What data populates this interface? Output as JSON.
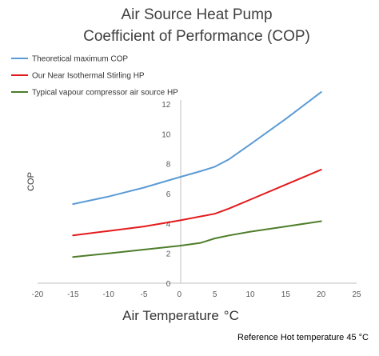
{
  "chart_data": {
    "type": "line",
    "title_line1": "Air Source Heat Pump",
    "title_line2": "Coefficient of Performance (COP)",
    "xlabel": "Air Temperature",
    "xlabel_unit": "°C",
    "ylabel": "COP",
    "note": "Reference Hot temperature 45 °C",
    "xlim": [
      -20,
      25
    ],
    "ylim": [
      0,
      12
    ],
    "xticks": [
      -20,
      -15,
      -10,
      -5,
      0,
      5,
      10,
      15,
      20,
      25
    ],
    "yticks": [
      0,
      2,
      4,
      6,
      8,
      10,
      12
    ],
    "grid": false,
    "legend_position": "top-left",
    "series": [
      {
        "name": "Theoretical maximum COP",
        "color": "#5b9bd5",
        "x": [
          -15,
          -10,
          -5,
          0,
          3,
          5,
          7,
          10,
          15,
          20
        ],
        "y": [
          5.3,
          5.8,
          6.4,
          7.1,
          7.5,
          7.8,
          8.3,
          9.3,
          11.0,
          12.8
        ]
      },
      {
        "name": "Our Near Isothermal Stirling HP",
        "color": "#e31a1c",
        "x": [
          -15,
          -10,
          -5,
          0,
          5,
          7,
          10,
          15,
          20
        ],
        "y": [
          3.2,
          3.5,
          3.8,
          4.2,
          4.65,
          5.0,
          5.6,
          6.6,
          7.6
        ]
      },
      {
        "name": "Typical vapour compressor air source HP",
        "color": "#4e7d2a",
        "x": [
          -15,
          -10,
          -5,
          0,
          3,
          5,
          7,
          10,
          15,
          20
        ],
        "y": [
          1.75,
          2.0,
          2.25,
          2.5,
          2.7,
          3.0,
          3.2,
          3.45,
          3.8,
          4.15
        ]
      }
    ]
  }
}
